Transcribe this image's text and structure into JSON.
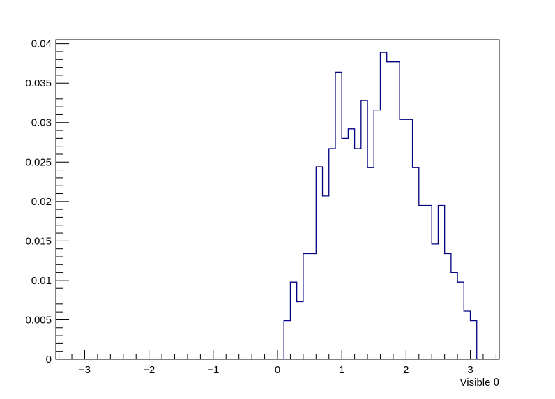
{
  "chart_data": {
    "type": "histogram",
    "title": "",
    "xlabel": "Visible  θ",
    "ylabel": "",
    "xlim": [
      -3.45,
      3.45
    ],
    "ylim": [
      0,
      0.0405
    ],
    "x_ticks": [
      -3,
      -2,
      -1,
      0,
      1,
      2,
      3
    ],
    "x_tick_labels": [
      "−3",
      "−2",
      "−1",
      "0",
      "1",
      "2",
      "3"
    ],
    "y_ticks": [
      0,
      0.005,
      0.01,
      0.015,
      0.02,
      0.025,
      0.03,
      0.035,
      0.04
    ],
    "y_tick_labels": [
      "0",
      "0.005",
      "0.01",
      "0.015",
      "0.02",
      "0.025",
      "0.03",
      "0.035",
      "0.04"
    ],
    "grid": false,
    "line_color": "#000080",
    "bins": [
      {
        "x_low": 0.1,
        "x_high": 0.2,
        "value": 0.0049
      },
      {
        "x_low": 0.2,
        "x_high": 0.3,
        "value": 0.0098
      },
      {
        "x_low": 0.3,
        "x_high": 0.4,
        "value": 0.0073
      },
      {
        "x_low": 0.4,
        "x_high": 0.6,
        "value": 0.0134
      },
      {
        "x_low": 0.6,
        "x_high": 0.7,
        "value": 0.0244
      },
      {
        "x_low": 0.7,
        "x_high": 0.8,
        "value": 0.0207
      },
      {
        "x_low": 0.8,
        "x_high": 0.9,
        "value": 0.0267
      },
      {
        "x_low": 0.9,
        "x_high": 1.0,
        "value": 0.0364
      },
      {
        "x_low": 1.0,
        "x_high": 1.1,
        "value": 0.028
      },
      {
        "x_low": 1.1,
        "x_high": 1.2,
        "value": 0.0292
      },
      {
        "x_low": 1.2,
        "x_high": 1.3,
        "value": 0.0267
      },
      {
        "x_low": 1.3,
        "x_high": 1.4,
        "value": 0.0328
      },
      {
        "x_low": 1.4,
        "x_high": 1.5,
        "value": 0.0243
      },
      {
        "x_low": 1.5,
        "x_high": 1.6,
        "value": 0.0316
      },
      {
        "x_low": 1.6,
        "x_high": 1.7,
        "value": 0.0389
      },
      {
        "x_low": 1.7,
        "x_high": 1.9,
        "value": 0.0377
      },
      {
        "x_low": 1.9,
        "x_high": 2.1,
        "value": 0.0304
      },
      {
        "x_low": 2.1,
        "x_high": 2.2,
        "value": 0.0243
      },
      {
        "x_low": 2.2,
        "x_high": 2.4,
        "value": 0.0195
      },
      {
        "x_low": 2.4,
        "x_high": 2.5,
        "value": 0.0146
      },
      {
        "x_low": 2.5,
        "x_high": 2.6,
        "value": 0.0195
      },
      {
        "x_low": 2.6,
        "x_high": 2.7,
        "value": 0.0134
      },
      {
        "x_low": 2.7,
        "x_high": 2.8,
        "value": 0.011
      },
      {
        "x_low": 2.8,
        "x_high": 2.9,
        "value": 0.0098
      },
      {
        "x_low": 2.9,
        "x_high": 3.0,
        "value": 0.0061
      },
      {
        "x_low": 3.0,
        "x_high": 3.1,
        "value": 0.0049
      }
    ]
  }
}
